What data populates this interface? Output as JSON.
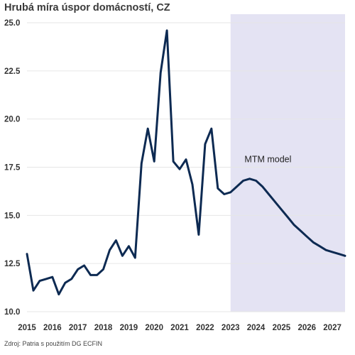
{
  "chart_data": {
    "type": "line",
    "title": "Hrubá míra úspor domácností, CZ",
    "xlabel": "",
    "ylabel": "",
    "xlim": [
      2015,
      2027.5
    ],
    "ylim": [
      10.0,
      25.0
    ],
    "y_ticks": [
      "10.0",
      "12.5",
      "15.0",
      "17.5",
      "20.0",
      "22.5",
      "25.0"
    ],
    "x_ticks": [
      "2015",
      "2016",
      "2017",
      "2018",
      "2019",
      "2020",
      "2021",
      "2022",
      "2023",
      "2024",
      "2025",
      "2026",
      "2027"
    ],
    "grid": "horizontal",
    "forecast_start": 2023.0,
    "annotation": "MTM model",
    "source": "Zdroj: Patria s použitím DG ECFIN",
    "colors": {
      "line": "#0d2a52",
      "forecast_band": "#e4e3f3",
      "grid": "#e6e6e6"
    },
    "series": [
      {
        "x": [
          2015.0,
          2015.25,
          2015.5,
          2015.75,
          2016.0,
          2016.25,
          2016.5,
          2016.75,
          2017.0,
          2017.25,
          2017.5,
          2017.75,
          2018.0,
          2018.25,
          2018.5,
          2018.75,
          2019.0,
          2019.25,
          2019.5,
          2019.75,
          2020.0,
          2020.25,
          2020.5,
          2020.75,
          2021.0,
          2021.25,
          2021.5,
          2021.75,
          2022.0,
          2022.25,
          2022.5,
          2022.75,
          2023.0,
          2023.25,
          2023.5,
          2023.75,
          2024.0,
          2024.25,
          2024.5,
          2024.75,
          2025.0,
          2025.25,
          2025.5,
          2025.75,
          2026.0,
          2026.25,
          2026.5,
          2026.75,
          2027.0,
          2027.25,
          2027.5
        ],
        "values": [
          13.0,
          11.1,
          11.6,
          11.7,
          11.8,
          10.9,
          11.5,
          11.7,
          12.2,
          12.4,
          11.9,
          11.9,
          12.2,
          13.2,
          13.7,
          12.9,
          13.4,
          12.8,
          17.7,
          19.5,
          17.8,
          22.4,
          24.6,
          17.8,
          17.4,
          17.9,
          16.6,
          14.0,
          18.7,
          19.5,
          16.4,
          16.1,
          16.2,
          16.5,
          16.8,
          16.9,
          16.8,
          16.5,
          16.1,
          15.7,
          15.3,
          14.9,
          14.5,
          14.2,
          13.9,
          13.6,
          13.4,
          13.2,
          13.1,
          13.0,
          12.9
        ]
      }
    ]
  }
}
